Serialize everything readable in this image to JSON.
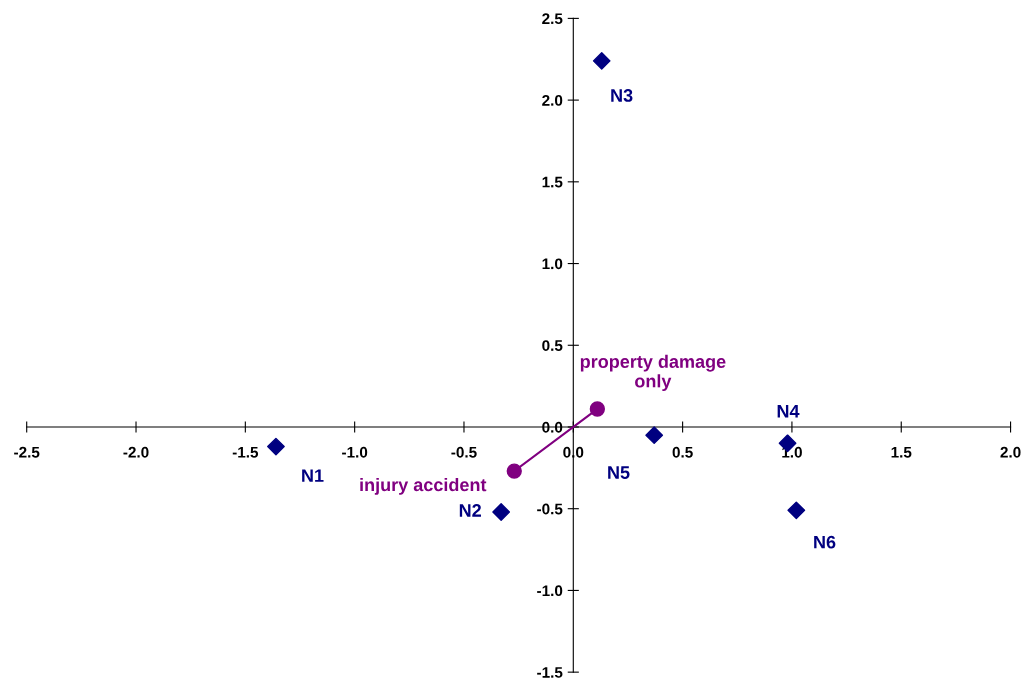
{
  "chart_data": {
    "type": "scatter",
    "series": [
      {
        "color": "#000080",
        "marker": "diamond",
        "x": [
          -1.36,
          -0.33,
          0.13,
          0.98,
          0.37,
          1.02
        ],
        "values": [
          -0.12,
          -0.52,
          2.24,
          -0.1,
          -0.05,
          -0.51
        ]
      },
      {
        "type": "line",
        "color": "#800080",
        "marker": "circle",
        "x": [
          -0.27,
          0.11
        ],
        "values": [
          -0.27,
          0.11
        ]
      }
    ],
    "annotations": [
      {
        "text": "N1",
        "x": -1.36,
        "y": -0.12
      },
      {
        "text": "N2",
        "x": -0.33,
        "y": -0.52
      },
      {
        "text": "N3",
        "x": 0.13,
        "y": 2.24
      },
      {
        "text": "N4",
        "x": 0.98,
        "y": -0.1
      },
      {
        "text": "N5",
        "x": 0.37,
        "y": -0.05
      },
      {
        "text": "N6",
        "x": 1.02,
        "y": -0.51
      },
      {
        "text": "property damage\nonly",
        "x": 0.11,
        "y": 0.11
      },
      {
        "text": "injury accident",
        "x": -0.27,
        "y": -0.27
      }
    ],
    "xlim": [
      -2.5,
      2.0
    ],
    "ylim": [
      -1.5,
      2.5
    ],
    "xticks": [
      {
        "value": -2.5,
        "label": "-2.5"
      },
      {
        "value": -2.0,
        "label": "-2.0"
      },
      {
        "value": -1.5,
        "label": "-1.5"
      },
      {
        "value": -1.0,
        "label": "-1.0"
      },
      {
        "value": -0.5,
        "label": "-0.5"
      },
      {
        "value": 0.0,
        "label": "0.0"
      },
      {
        "value": 0.5,
        "label": "0.5"
      },
      {
        "value": 1.0,
        "label": "1.0"
      },
      {
        "value": 1.5,
        "label": "1.5"
      },
      {
        "value": 2.0,
        "label": "2.0"
      }
    ],
    "yticks": [
      {
        "value": -1.5,
        "label": "-1.5"
      },
      {
        "value": -1.0,
        "label": "-1.0"
      },
      {
        "value": -0.5,
        "label": "-0.5"
      },
      {
        "value": 0.0,
        "label": "0.0"
      },
      {
        "value": 0.5,
        "label": "0.5"
      },
      {
        "value": 1.0,
        "label": "1.0"
      },
      {
        "value": 1.5,
        "label": "1.5"
      },
      {
        "value": 2.0,
        "label": "2.0"
      },
      {
        "value": 2.5,
        "label": "2.5"
      }
    ],
    "grid": false,
    "legend": false
  }
}
